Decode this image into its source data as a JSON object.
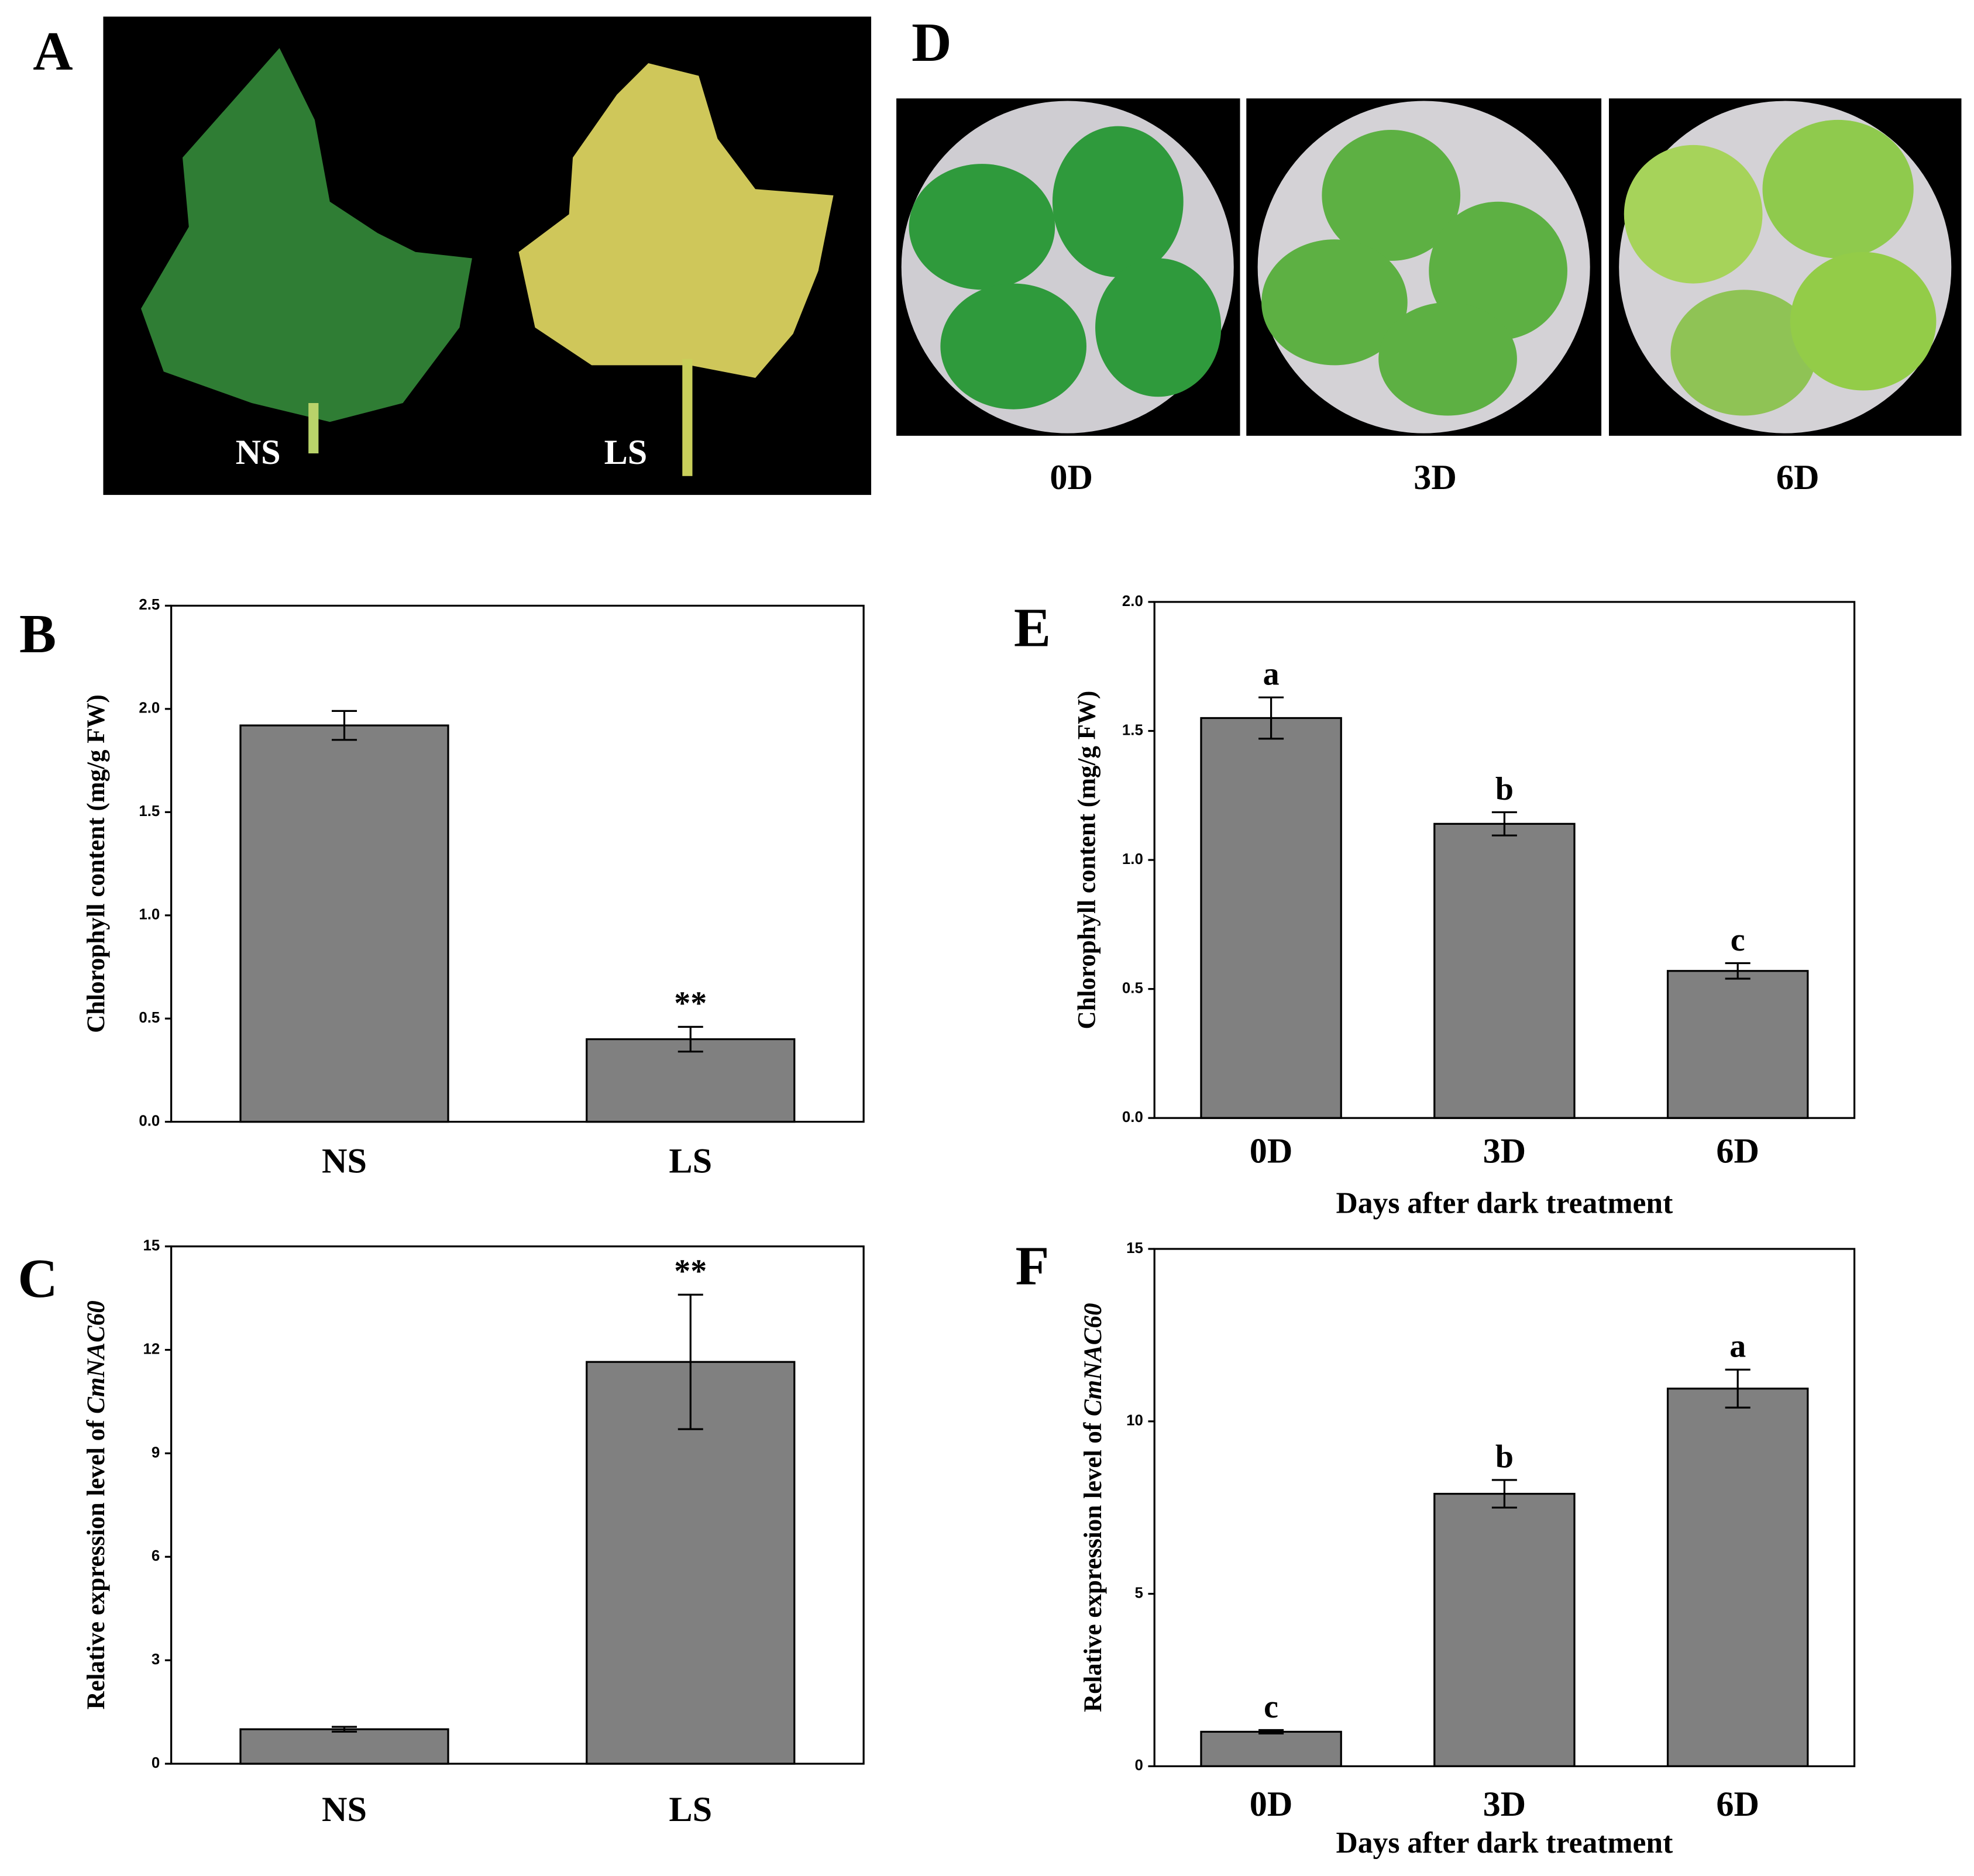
{
  "panels": {
    "A": {
      "label": "A",
      "leaves": [
        "NS",
        "LS"
      ]
    },
    "D": {
      "label": "D",
      "days": [
        "0D",
        "3D",
        "6D"
      ]
    }
  },
  "chart_data": [
    {
      "type": "bar",
      "panel": "B",
      "ylabel": [
        "Chlorophyll content (mg/g FW)"
      ],
      "categories": [
        "NS",
        "LS"
      ],
      "values": [
        1.92,
        0.4
      ],
      "errors": [
        0.07,
        0.06
      ],
      "annotations": [
        null,
        "**"
      ],
      "color": "#808080",
      "ylim": [
        0,
        2.5
      ],
      "yticks": [
        {
          "value": 0,
          "label": "0.0"
        },
        0.5,
        {
          "value": 1,
          "label": "1.0"
        },
        1.5,
        {
          "value": 2,
          "label": "2.0"
        },
        2.5
      ]
    },
    {
      "type": "bar",
      "panel": "C",
      "ylabel": [
        "Relative expression level of",
        "CmNAC60"
      ],
      "categories": [
        "NS",
        "LS"
      ],
      "values": [
        1.0,
        11.65
      ],
      "errors": [
        0.07,
        1.95
      ],
      "annotations": [
        null,
        "**"
      ],
      "color": "#808080",
      "ylim": [
        0,
        15
      ],
      "yticks": [
        0,
        3,
        6,
        9,
        12,
        15
      ]
    },
    {
      "type": "bar",
      "panel": "E",
      "ylabel": [
        "Chlorophyll content (mg/g FW)"
      ],
      "xlabel": "Days after dark treatment",
      "categories": [
        "0D",
        "3D",
        "6D"
      ],
      "values": [
        1.55,
        1.14,
        0.57
      ],
      "errors": [
        0.08,
        0.045,
        0.03
      ],
      "annotations": [
        "a",
        "b",
        "c"
      ],
      "color": "#808080",
      "ylim": [
        0,
        2.0
      ],
      "yticks": [
        {
          "value": 0,
          "label": "0.0"
        },
        0.5,
        {
          "value": 1,
          "label": "1.0"
        },
        1.5,
        {
          "value": 2,
          "label": "2.0"
        }
      ]
    },
    {
      "type": "bar",
      "panel": "F",
      "ylabel": [
        "Relative expression level of",
        "CmNAC60"
      ],
      "xlabel": "Days after dark treatment",
      "categories": [
        "0D",
        "3D",
        "6D"
      ],
      "values": [
        1.0,
        7.9,
        10.95
      ],
      "errors": [
        0.05,
        0.4,
        0.55
      ],
      "annotations": [
        "c",
        "b",
        "a"
      ],
      "color": "#808080",
      "ylim": [
        0,
        15
      ],
      "yticks": [
        0,
        5,
        10,
        15
      ]
    }
  ]
}
